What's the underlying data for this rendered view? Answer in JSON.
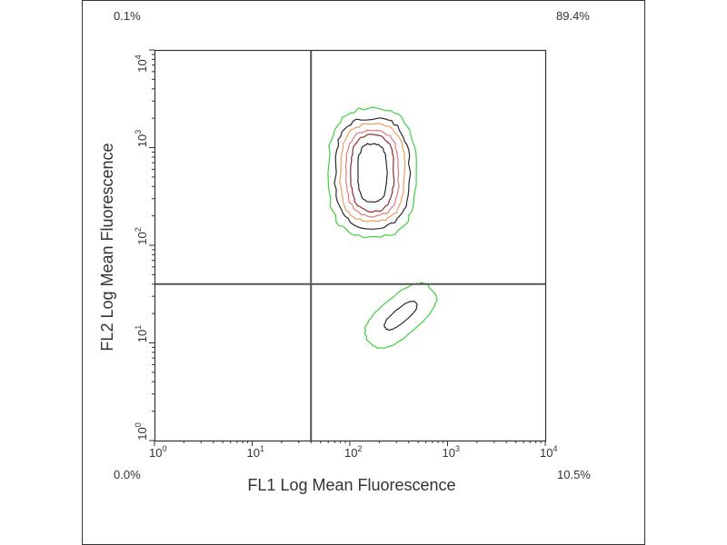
{
  "chart_data": {
    "type": "contour",
    "xlabel": "FL1 Log Mean Fluorescence",
    "ylabel": "FL2 Log Mean Fluorescence",
    "xscale": "log",
    "yscale": "log",
    "xlim": [
      1,
      10000
    ],
    "ylim": [
      1,
      10000
    ],
    "x_tick_labels": [
      {
        "base": "10",
        "exp": "0"
      },
      {
        "base": "10",
        "exp": "1"
      },
      {
        "base": "10",
        "exp": "2"
      },
      {
        "base": "10",
        "exp": "3"
      },
      {
        "base": "10",
        "exp": "4"
      }
    ],
    "y_tick_labels": [
      {
        "base": "10",
        "exp": "0"
      },
      {
        "base": "10",
        "exp": "1"
      },
      {
        "base": "10",
        "exp": "2"
      },
      {
        "base": "10",
        "exp": "3"
      },
      {
        "base": "10",
        "exp": "4"
      }
    ],
    "quadrant_gate": {
      "x": 40,
      "y": 40
    },
    "quadrant_percentages": {
      "upper_left": "0.1%",
      "upper_right": "89.4%",
      "lower_left": "0.0%",
      "lower_right": "10.5%"
    },
    "populations": [
      {
        "name": "main",
        "center_log": [
          2.23,
          2.74
        ],
        "tilt_deg": 0,
        "contours": [
          {
            "level": 1,
            "color": "#3fcf3f",
            "half_width_log": [
              0.45,
              0.66
            ]
          },
          {
            "level": 2,
            "color": "#2b2b2b",
            "half_width_log": [
              0.38,
              0.56
            ]
          },
          {
            "level": 3,
            "color": "#e8a060",
            "half_width_log": [
              0.33,
              0.5
            ]
          },
          {
            "level": 4,
            "color": "#e07a7a",
            "half_width_log": [
              0.27,
              0.44
            ]
          },
          {
            "level": 5,
            "color": "#8b2f2f",
            "half_width_log": [
              0.22,
              0.39
            ]
          },
          {
            "level": 6,
            "color": "#2b2b2b",
            "half_width_log": [
              0.15,
              0.3
            ]
          }
        ]
      },
      {
        "name": "secondary",
        "center_log": [
          2.52,
          1.28
        ],
        "tilt_deg": -40,
        "contours": [
          {
            "level": 1,
            "color": "#3fcf3f",
            "half_width_log": [
              0.42,
              0.2
            ]
          },
          {
            "level": 2,
            "color": "#2b2b2b",
            "half_width_log": [
              0.2,
              0.07
            ]
          }
        ]
      }
    ]
  }
}
